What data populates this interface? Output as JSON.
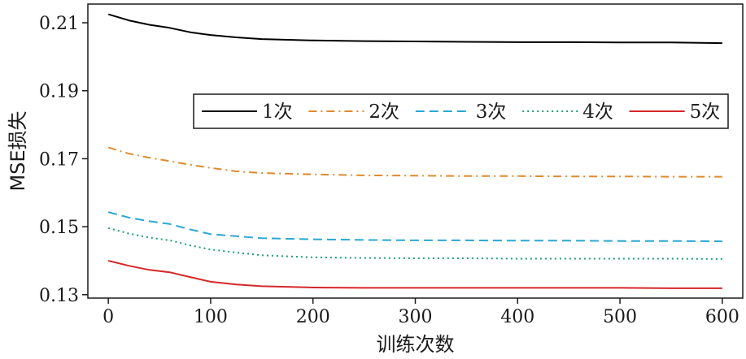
{
  "chart_data": {
    "type": "line",
    "xlabel": "训练次数",
    "ylabel": "MSE损失",
    "xlim": [
      -20,
      620
    ],
    "ylim": [
      0.129,
      0.2155
    ],
    "xticks": [
      0,
      100,
      200,
      300,
      400,
      500,
      600
    ],
    "xtick_labels": [
      "0",
      "100",
      "200",
      "300",
      "400",
      "500",
      "600"
    ],
    "yticks": [
      0.13,
      0.15,
      0.17,
      0.19,
      0.21
    ],
    "ytick_labels": [
      "0.13",
      "0.15",
      "0.17",
      "0.19",
      "0.21"
    ],
    "grid": false,
    "legend_position": "upper-right, single row",
    "x": [
      0,
      20,
      40,
      60,
      80,
      100,
      125,
      150,
      200,
      250,
      300,
      350,
      400,
      450,
      500,
      550,
      600
    ],
    "series": [
      {
        "name": "1次",
        "color": "#000000",
        "dash": "solid",
        "values": [
          0.2125,
          0.2107,
          0.2094,
          0.2085,
          0.2072,
          0.2064,
          0.2057,
          0.2052,
          0.2048,
          0.2046,
          0.2045,
          0.2044,
          0.2043,
          0.2043,
          0.2042,
          0.2042,
          0.204
        ]
      },
      {
        "name": "2次",
        "color": "#E08A2E",
        "dash": "dashdot",
        "values": [
          0.1733,
          0.1715,
          0.1703,
          0.1693,
          0.1682,
          0.1673,
          0.1663,
          0.1658,
          0.1654,
          0.1651,
          0.165,
          0.1649,
          0.1649,
          0.1648,
          0.1648,
          0.1647,
          0.1647
        ]
      },
      {
        "name": "3次",
        "color": "#2AA7D6",
        "dash": "dashed",
        "values": [
          0.1543,
          0.1527,
          0.1516,
          0.1508,
          0.1492,
          0.1478,
          0.1472,
          0.1466,
          0.1463,
          0.1461,
          0.146,
          0.146,
          0.1459,
          0.1459,
          0.1458,
          0.1458,
          0.1457
        ]
      },
      {
        "name": "4次",
        "color": "#1B9E77",
        "dash": "dotted",
        "values": [
          0.1496,
          0.148,
          0.1468,
          0.146,
          0.1445,
          0.1433,
          0.1424,
          0.1416,
          0.141,
          0.1408,
          0.1407,
          0.1407,
          0.1406,
          0.1406,
          0.1406,
          0.1406,
          0.1405
        ]
      },
      {
        "name": "5次",
        "color": "#D62728",
        "dash": "solid",
        "values": [
          0.14,
          0.1385,
          0.1373,
          0.1366,
          0.1352,
          0.1338,
          0.133,
          0.1325,
          0.1321,
          0.132,
          0.132,
          0.132,
          0.132,
          0.132,
          0.132,
          0.1319,
          0.1319
        ]
      }
    ]
  }
}
